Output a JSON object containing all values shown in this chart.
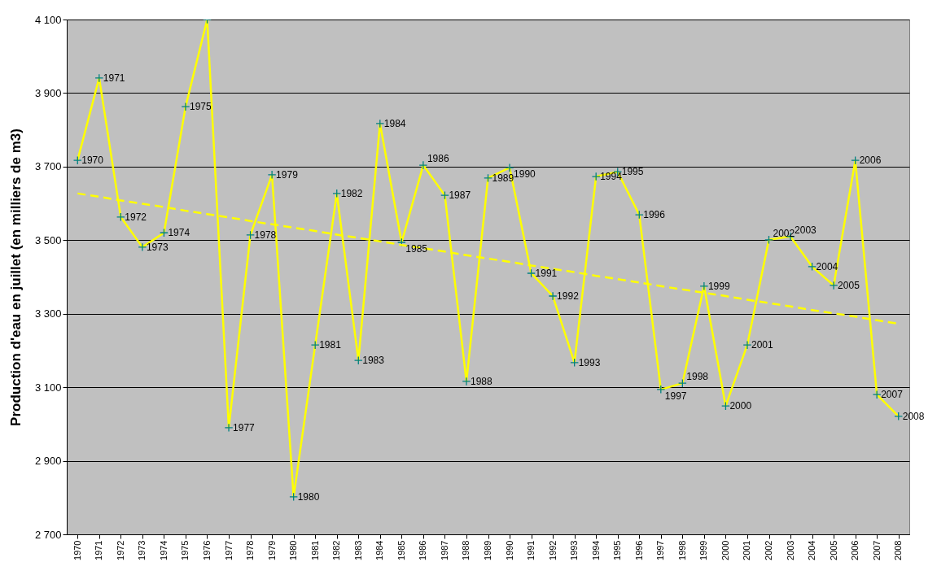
{
  "chart_data": {
    "type": "line",
    "ylabel": "Production d'eau en juillet (en milliers de m3)",
    "categories": [
      "1970",
      "1971",
      "1972",
      "1973",
      "1974",
      "1975",
      "1976",
      "1977",
      "1978",
      "1979",
      "1980",
      "1981",
      "1982",
      "1983",
      "1984",
      "1985",
      "1986",
      "1987",
      "1988",
      "1989",
      "1990",
      "1991",
      "1992",
      "1993",
      "1994",
      "1995",
      "1996",
      "1997",
      "1998",
      "1999",
      "2000",
      "2001",
      "2002",
      "2003",
      "2004",
      "2005",
      "2006",
      "2007",
      "2008"
    ],
    "series": [
      {
        "color": "#ffff00",
        "marker": "cross",
        "values": [
          3717,
          3941,
          3563,
          3481,
          3520,
          3863,
          4100,
          2990,
          3514,
          3678,
          2802,
          3215,
          3627,
          3173,
          3817,
          3494,
          3704,
          3622,
          3116,
          3669,
          3697,
          3410,
          3348,
          3167,
          3673,
          3686,
          3569,
          3094,
          3111,
          3375,
          3049,
          3215,
          3501,
          3510,
          3428,
          3377,
          3717,
          3080,
          3021
        ]
      },
      {
        "color": "#ffff00",
        "line_style": "dashed",
        "marker": "none",
        "values": [
          3627,
          3618,
          3608,
          3599,
          3590,
          3580,
          3571,
          3562,
          3552,
          3543,
          3534,
          3525,
          3515,
          3506,
          3497,
          3487,
          3478,
          3469,
          3459,
          3450,
          3441,
          3431,
          3422,
          3413,
          3403,
          3394,
          3385,
          3375,
          3366,
          3357,
          3348,
          3338,
          3329,
          3320,
          3310,
          3301,
          3292,
          3282,
          3273
        ]
      }
    ],
    "ylim": [
      2700,
      4100
    ],
    "yticks": [
      {
        "value": 2700,
        "label": "2 700"
      },
      {
        "value": 2900,
        "label": "2 900"
      },
      {
        "value": 3100,
        "label": "3 100"
      },
      {
        "value": 3300,
        "label": "3 300"
      },
      {
        "value": 3500,
        "label": "3 500"
      },
      {
        "value": 3700,
        "label": "3 700"
      },
      {
        "value": 3900,
        "label": "3 900"
      },
      {
        "value": 4100,
        "label": "4 100"
      }
    ],
    "grid": "y",
    "annotations": [
      {
        "text": "1970",
        "x": "1970",
        "y": 3717
      },
      {
        "text": "1971",
        "x": "1971",
        "y": 3941
      },
      {
        "text": "1972",
        "x": "1972",
        "y": 3563
      },
      {
        "text": "1973",
        "x": "1973",
        "y": 3481
      },
      {
        "text": "1974",
        "x": "1974",
        "y": 3520
      },
      {
        "text": "1975",
        "x": "1975",
        "y": 3863
      },
      {
        "text": "1977",
        "x": "1977",
        "y": 2990
      },
      {
        "text": "1978",
        "x": "1978",
        "y": 3514
      },
      {
        "text": "1979",
        "x": "1979",
        "y": 3678
      },
      {
        "text": "1980",
        "x": "1980",
        "y": 2802
      },
      {
        "text": "1981",
        "x": "1981",
        "y": 3215
      },
      {
        "text": "1982",
        "x": "1982",
        "y": 3627
      },
      {
        "text": "1983",
        "x": "1983",
        "y": 3173
      },
      {
        "text": "1984",
        "x": "1984",
        "y": 3817
      },
      {
        "text": "1985",
        "x": "1985",
        "y": 3494
      },
      {
        "text": "1986",
        "x": "1986",
        "y": 3704
      },
      {
        "text": "1987",
        "x": "1987",
        "y": 3622
      },
      {
        "text": "1988",
        "x": "1988",
        "y": 3116
      },
      {
        "text": "1989",
        "x": "1989",
        "y": 3669
      },
      {
        "text": "1990",
        "x": "1990",
        "y": 3697
      },
      {
        "text": "1991",
        "x": "1991",
        "y": 3410
      },
      {
        "text": "1992",
        "x": "1992",
        "y": 3348
      },
      {
        "text": "1993",
        "x": "1993",
        "y": 3167
      },
      {
        "text": "1994",
        "x": "1994",
        "y": 3673
      },
      {
        "text": "1995",
        "x": "1995",
        "y": 3686
      },
      {
        "text": "1996",
        "x": "1996",
        "y": 3569
      },
      {
        "text": "1997",
        "x": "1997",
        "y": 3094
      },
      {
        "text": "1998",
        "x": "1998",
        "y": 3111
      },
      {
        "text": "1999",
        "x": "1999",
        "y": 3375
      },
      {
        "text": "2000",
        "x": "2000",
        "y": 3049
      },
      {
        "text": "2001",
        "x": "2001",
        "y": 3215
      },
      {
        "text": "2002",
        "x": "2002",
        "y": 3501
      },
      {
        "text": "2003",
        "x": "2003",
        "y": 3510
      },
      {
        "text": "2004",
        "x": "2004",
        "y": 3428
      },
      {
        "text": "2005",
        "x": "2005",
        "y": 3377
      },
      {
        "text": "2006",
        "x": "2006",
        "y": 3717
      },
      {
        "text": "2007",
        "x": "2007",
        "y": 3080
      },
      {
        "text": "2008",
        "x": "2008",
        "y": 3021
      }
    ]
  }
}
